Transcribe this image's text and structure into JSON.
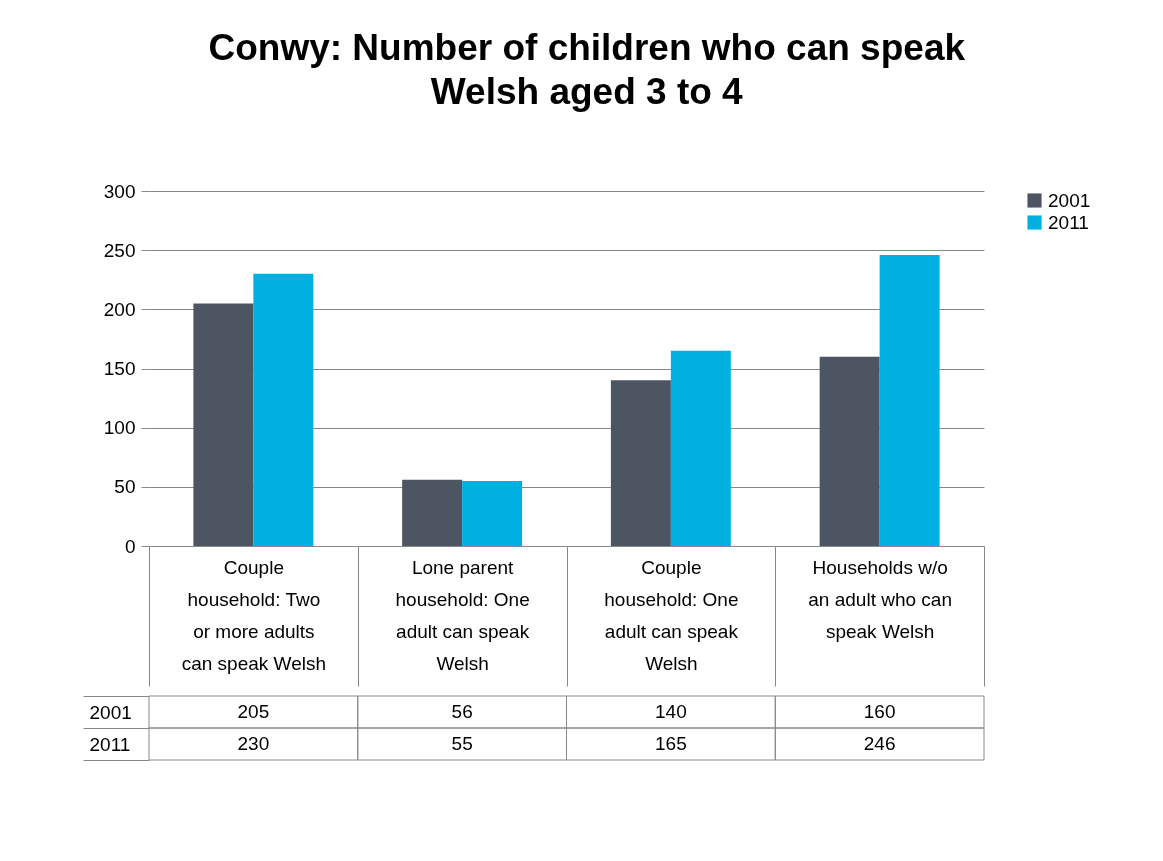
{
  "chart_data": {
    "type": "bar",
    "title": "Conwy: Number of children who can speak Welsh aged 3 to 4",
    "categories": [
      "Couple household: Two or more adults can speak Welsh",
      "Lone parent household: One adult can speak Welsh",
      "Couple household: One adult can speak Welsh",
      "Households w/o an adult who can speak Welsh"
    ],
    "series": [
      {
        "name": "2001",
        "color": "#4d5562",
        "values": [
          205,
          56,
          140,
          160
        ]
      },
      {
        "name": "2011",
        "color": "#00b0e0",
        "values": [
          230,
          55,
          165,
          246
        ]
      }
    ],
    "ylim": [
      0,
      300
    ],
    "yticks": [
      0,
      50,
      100,
      150,
      200,
      250,
      300
    ],
    "grid": "y",
    "legend": "right",
    "data_labels": true
  }
}
